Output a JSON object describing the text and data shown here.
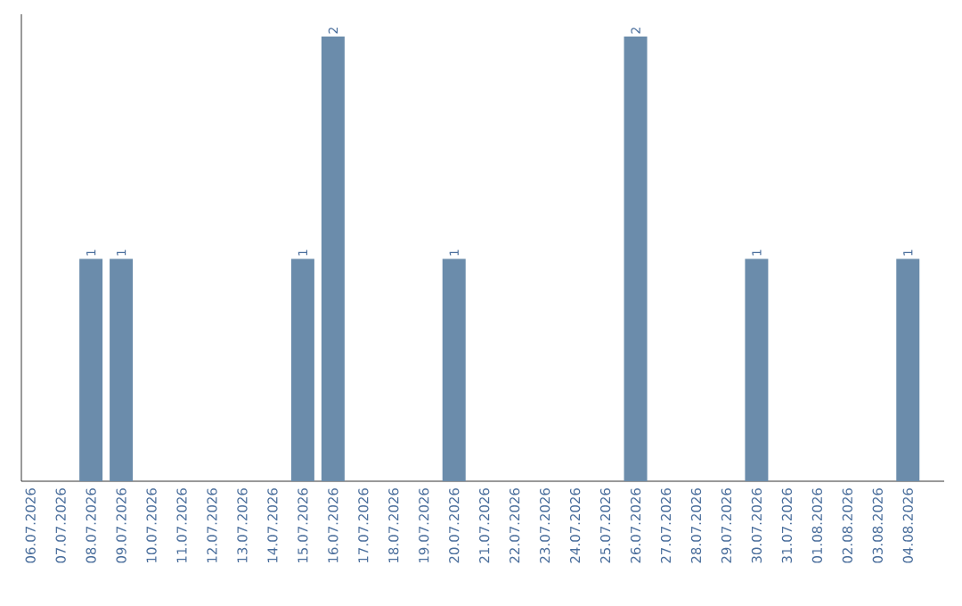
{
  "chart_data": {
    "type": "bar",
    "categories": [
      "06.07.2026",
      "07.07.2026",
      "08.07.2026",
      "09.07.2026",
      "10.07.2026",
      "11.07.2026",
      "12.07.2026",
      "13.07.2026",
      "14.07.2026",
      "15.07.2026",
      "16.07.2026",
      "17.07.2026",
      "18.07.2026",
      "19.07.2026",
      "20.07.2026",
      "21.07.2026",
      "22.07.2026",
      "23.07.2026",
      "24.07.2026",
      "25.07.2026",
      "26.07.2026",
      "27.07.2026",
      "28.07.2026",
      "29.07.2026",
      "30.07.2026",
      "31.07.2026",
      "01.08.2026",
      "02.08.2026",
      "03.08.2026",
      "04.08.2026"
    ],
    "values": [
      0,
      0,
      1,
      1,
      0,
      0,
      0,
      0,
      0,
      1,
      2,
      0,
      0,
      0,
      1,
      0,
      0,
      0,
      0,
      0,
      2,
      0,
      0,
      0,
      1,
      0,
      0,
      0,
      0,
      1
    ],
    "value_labels": [
      null,
      null,
      "1",
      "1",
      null,
      null,
      null,
      null,
      null,
      "1",
      "2",
      null,
      null,
      null,
      "1",
      null,
      null,
      null,
      null,
      null,
      "2",
      null,
      null,
      null,
      "1",
      null,
      null,
      null,
      null,
      "1"
    ],
    "color": "#6b8cab"
  }
}
